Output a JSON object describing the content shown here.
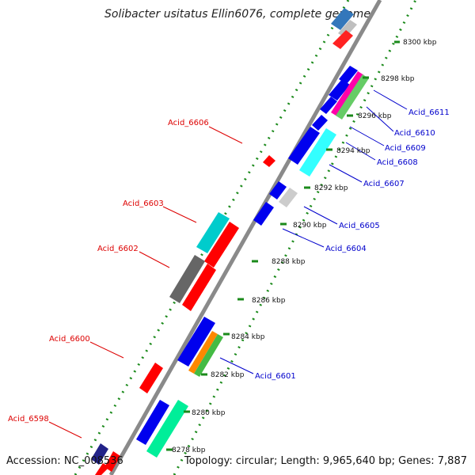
{
  "title": "Solibacter usitatus Ellin6076, complete genome",
  "accession": "Accession: NC_008536",
  "topology": "Topology: circular; Length: 9,965,640 bp; Genes: 7,887",
  "ticks": [
    "8300 kbp",
    "8298 kbp",
    "8296 kbp",
    "8294 kbp",
    "8292 kbp",
    "8290 kbp",
    "8288 kbp",
    "8286 kbp",
    "8284 kbp",
    "8282 kbp",
    "8280 kbp",
    "8278 kbp"
  ],
  "genes_right": [
    "Acid_6611",
    "Acid_6610",
    "Acid_6609",
    "Acid_6608",
    "Acid_6607",
    "Acid_6605",
    "Acid_6604",
    "Acid_6601"
  ],
  "genes_left": [
    "Acid_6606",
    "Acid_6603",
    "Acid_6602",
    "Acid_6600",
    "Acid_6598"
  ],
  "colors": {
    "forward_strand": "#ff0000",
    "reverse_strand": "#0000ff",
    "backbone": "#888888",
    "tick_dots": "#009900",
    "label_right": "#0000cc",
    "label_left": "#dd0000"
  }
}
